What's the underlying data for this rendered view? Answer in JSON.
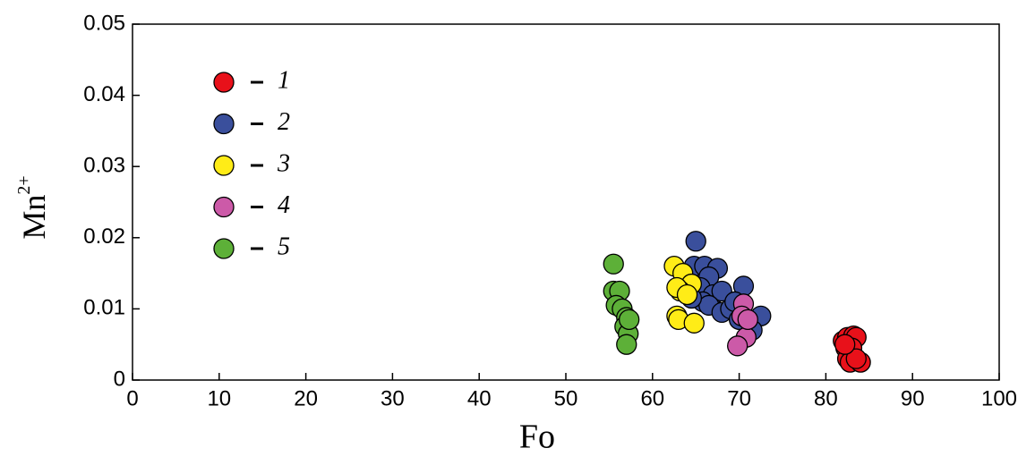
{
  "chart_data": {
    "type": "scatter",
    "x_label": "Fo",
    "y_label": "Mn",
    "y_label_sup": "2+",
    "xlim": [
      0,
      100
    ],
    "xticks": [
      0,
      10,
      20,
      30,
      40,
      50,
      60,
      70,
      80,
      90,
      100
    ],
    "ylim": [
      0,
      0.05
    ],
    "yticks": [
      0,
      0.01,
      0.02,
      0.03,
      0.04,
      0.05
    ],
    "legend": "upper left",
    "series": [
      {
        "name": "1",
        "color": "#e8111a",
        "x": [
          82.0,
          82.5,
          83.2,
          83.5,
          82.3,
          82.8,
          83.0,
          82.5,
          82.8,
          84.0,
          83.5,
          82.2
        ],
        "values": [
          0.0055,
          0.006,
          0.0062,
          0.006,
          0.0045,
          0.004,
          0.0045,
          0.003,
          0.0025,
          0.0025,
          0.003,
          0.005
        ]
      },
      {
        "name": "2",
        "color": "#3a4f9c",
        "x": [
          65.0,
          64.8,
          66.0,
          67.5,
          66.5,
          65.5,
          67.0,
          68.0,
          70.5,
          65.8,
          66.5,
          68.0,
          69.0,
          70.0,
          72.5,
          71.5,
          64.5,
          69.5
        ],
        "values": [
          0.0195,
          0.016,
          0.016,
          0.0157,
          0.0145,
          0.013,
          0.012,
          0.0125,
          0.0132,
          0.011,
          0.0105,
          0.0095,
          0.01,
          0.0085,
          0.009,
          0.007,
          0.0115,
          0.011
        ]
      },
      {
        "name": "3",
        "color": "#ffec17",
        "x": [
          62.5,
          63.5,
          64.5,
          63.2,
          62.8,
          62.8,
          63.0,
          64.8,
          64.0
        ],
        "values": [
          0.016,
          0.015,
          0.0135,
          0.0125,
          0.013,
          0.009,
          0.0085,
          0.008,
          0.012
        ]
      },
      {
        "name": "4",
        "color": "#cc5aa8",
        "x": [
          70.5,
          70.3,
          70.8,
          69.8,
          71.0
        ],
        "values": [
          0.0107,
          0.009,
          0.006,
          0.0048,
          0.0085
        ]
      },
      {
        "name": "5",
        "color": "#5db038",
        "x": [
          55.5,
          55.5,
          56.2,
          55.8,
          56.5,
          57.0,
          56.8,
          57.2,
          57.0,
          57.3
        ],
        "values": [
          0.0163,
          0.0125,
          0.0125,
          0.0105,
          0.01,
          0.0088,
          0.0075,
          0.0065,
          0.005,
          0.0085
        ]
      }
    ]
  }
}
